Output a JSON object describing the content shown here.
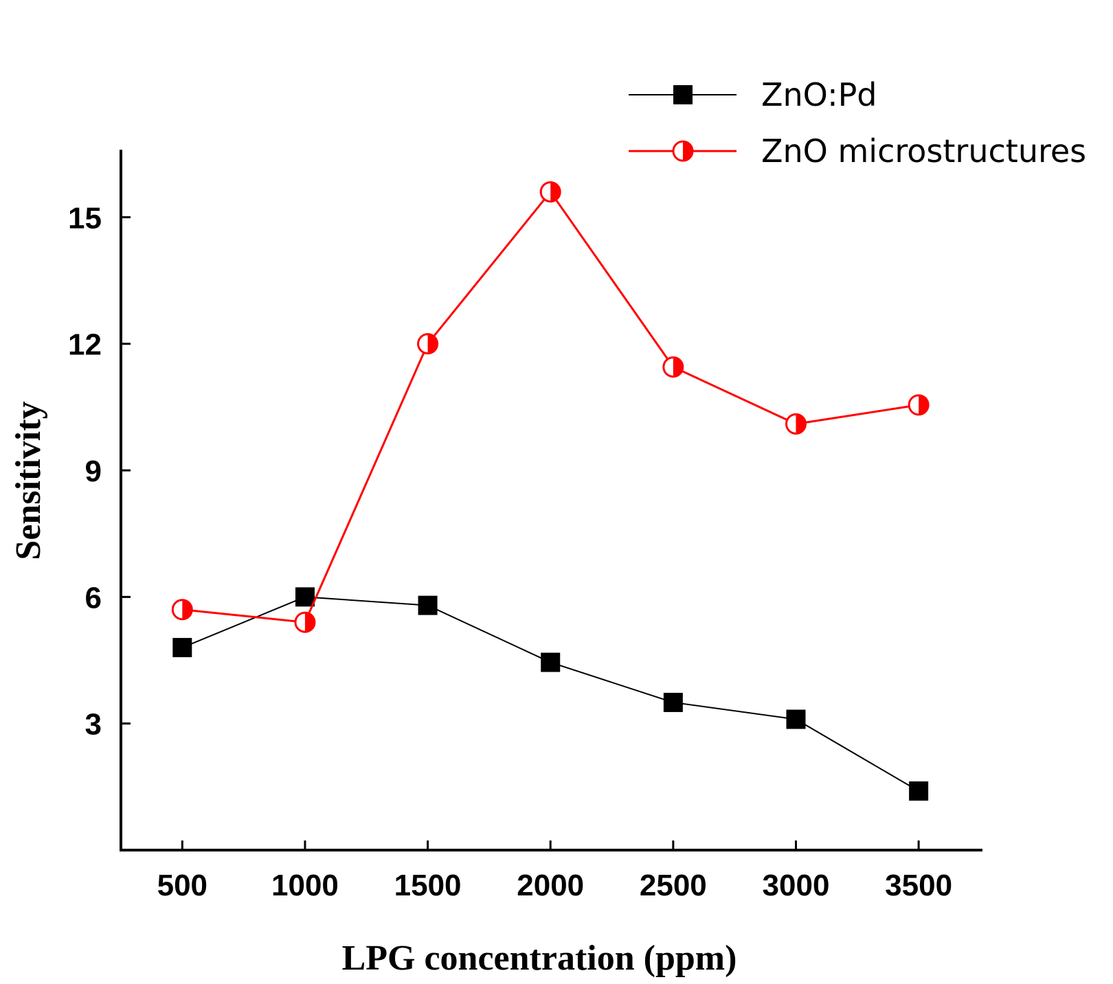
{
  "chart_data": {
    "type": "line",
    "title": "",
    "xlabel": "LPG concentration (ppm)",
    "ylabel": "Sensitivity",
    "x": [
      500,
      1000,
      1500,
      2000,
      2500,
      3000,
      3500
    ],
    "x_tick_labels": [
      "500",
      "1000",
      "1500",
      "2000",
      "2500",
      "3000",
      "3500"
    ],
    "y_ticks": [
      3,
      6,
      9,
      12,
      15
    ],
    "y_tick_labels": [
      "3",
      "6",
      "9",
      "12",
      "15"
    ],
    "xlim": [
      250,
      3760
    ],
    "ylim": [
      0.0,
      16.6
    ],
    "grid": false,
    "legend_position": "top-right",
    "series": [
      {
        "name": "ZnO:Pd",
        "marker": "square",
        "color": "#000000",
        "values": [
          4.8,
          6.0,
          5.8,
          4.45,
          3.5,
          3.1,
          1.4
        ]
      },
      {
        "name": "ZnO microstructures",
        "marker": "half-filled-circle",
        "color": "#ff0000",
        "values": [
          5.7,
          5.4,
          12.0,
          15.6,
          11.45,
          10.1,
          10.55
        ]
      }
    ]
  }
}
